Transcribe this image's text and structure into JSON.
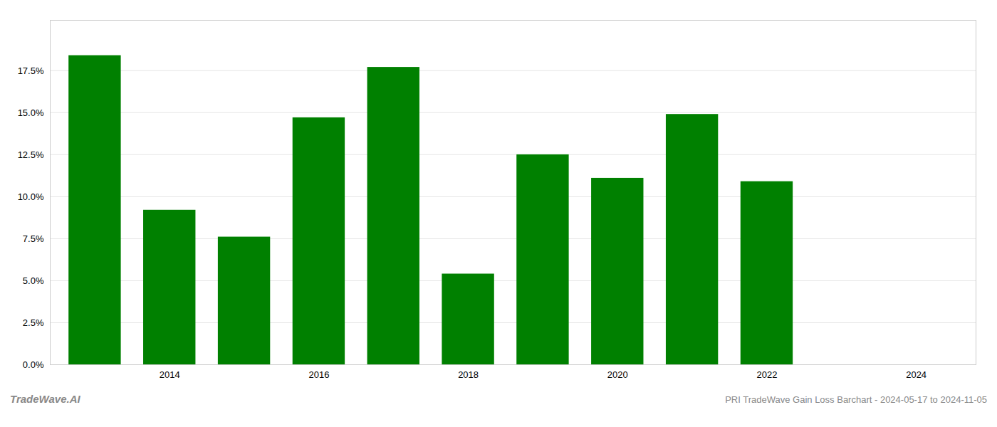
{
  "chart_data": {
    "type": "bar",
    "title": "PRI TradeWave Gain Loss Barchart - 2024-05-17 to 2024-11-05",
    "annotations": [
      "TradeWave.AI"
    ],
    "x": [
      2013,
      2014,
      2015,
      2016,
      2017,
      2018,
      2019,
      2020,
      2021,
      2022,
      2023
    ],
    "values": [
      0.184,
      0.092,
      0.076,
      0.147,
      0.177,
      0.054,
      0.125,
      0.111,
      0.149,
      0.109,
      0.0
    ],
    "color": "#008000",
    "xlim": [
      2012.4,
      2024.8
    ],
    "xticks": [
      2014,
      2016,
      2018,
      2020,
      2022,
      2024
    ],
    "ylim": [
      0,
      0.205
    ],
    "yticks": [
      {
        "value": 0.0,
        "label": "0.0%"
      },
      {
        "value": 0.025,
        "label": "2.5%"
      },
      {
        "value": 0.05,
        "label": "5.0%"
      },
      {
        "value": 0.075,
        "label": "7.5%"
      },
      {
        "value": 0.1,
        "label": "10.0%"
      },
      {
        "value": 0.125,
        "label": "12.5%"
      },
      {
        "value": 0.15,
        "label": "15.0%"
      },
      {
        "value": 0.175,
        "label": "17.5%"
      }
    ],
    "grid": true
  }
}
